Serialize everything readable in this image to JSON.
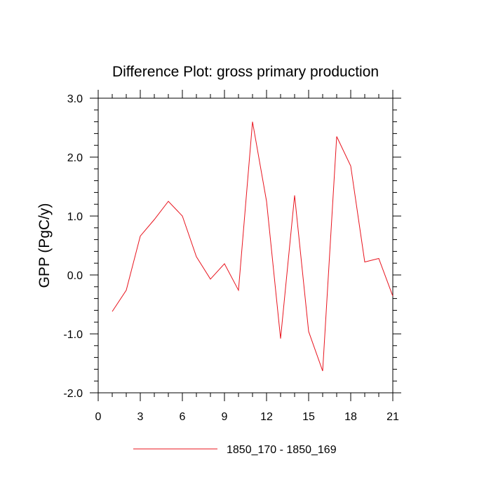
{
  "chart_data": {
    "type": "line",
    "title": "Difference Plot: gross primary production",
    "xlabel": "",
    "ylabel": "GPP  (PgC/y)",
    "xlim": [
      0,
      21
    ],
    "ylim": [
      -2.0,
      3.0
    ],
    "x_ticks": [
      0,
      3,
      6,
      9,
      12,
      15,
      18,
      21
    ],
    "x_tick_labels": [
      "0",
      "3",
      "6",
      "9",
      "12",
      "15",
      "18",
      "21"
    ],
    "y_ticks": [
      -2.0,
      -1.0,
      0.0,
      1.0,
      2.0,
      3.0
    ],
    "y_tick_labels": [
      "-2.0",
      "-1.0",
      "0.0",
      "1.0",
      "2.0",
      "3.0"
    ],
    "grid": false,
    "legend_position": "bottom-center",
    "series": [
      {
        "name": "1850_170 - 1850_169",
        "color": "#e8141e",
        "x": [
          1,
          2,
          3,
          4,
          5,
          6,
          7,
          8,
          9,
          10,
          11,
          12,
          13,
          14,
          15,
          16,
          17,
          18,
          19,
          20,
          21
        ],
        "values": [
          -0.62,
          -0.26,
          0.66,
          0.94,
          1.25,
          1.0,
          0.31,
          -0.07,
          0.19,
          -0.26,
          2.6,
          1.25,
          -1.08,
          1.35,
          -0.96,
          -1.63,
          2.35,
          1.85,
          0.22,
          0.28,
          -0.36
        ]
      }
    ]
  }
}
